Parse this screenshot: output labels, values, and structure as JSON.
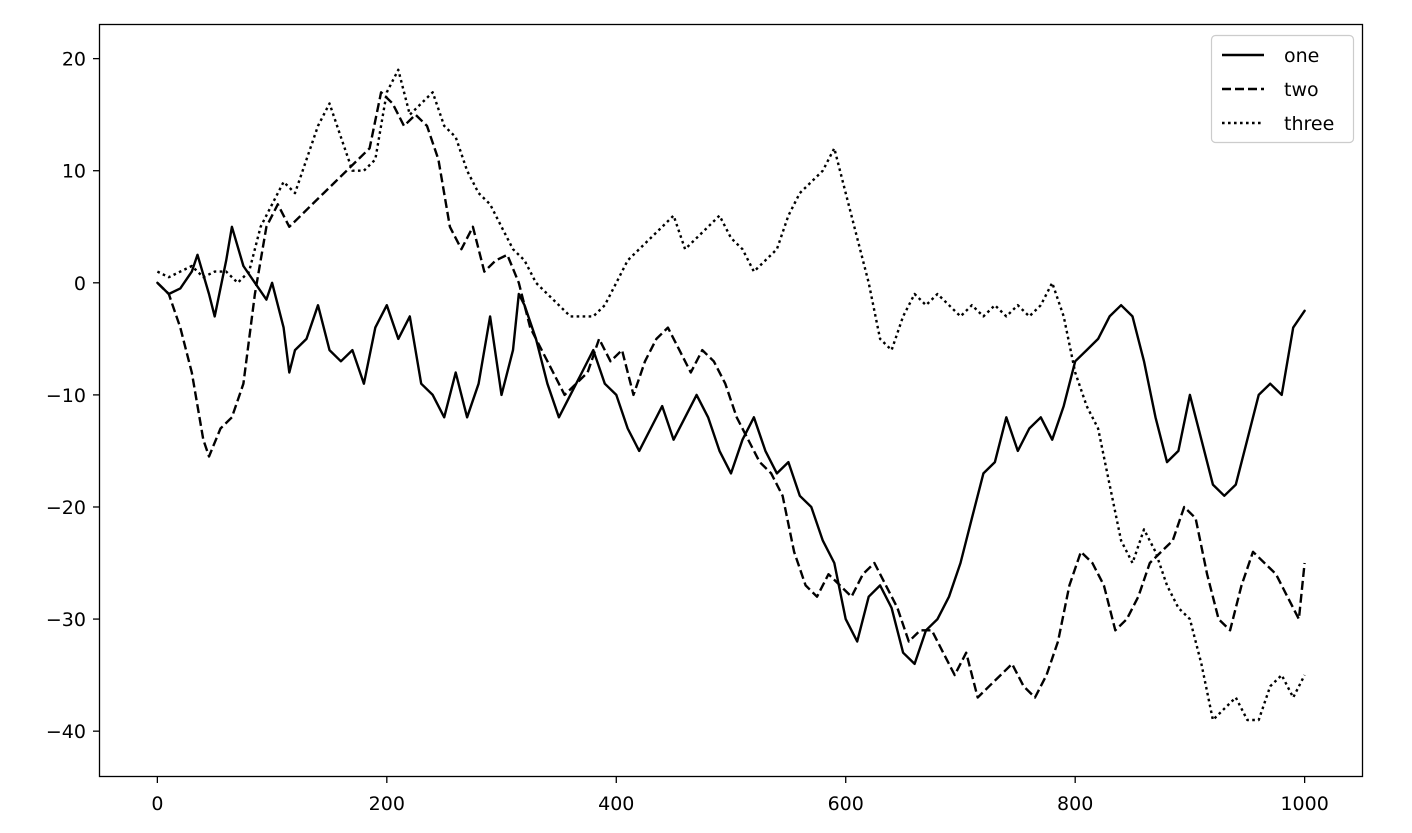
{
  "chart_data": {
    "type": "line",
    "title": "",
    "xlabel": "",
    "ylabel": "",
    "xlim": [
      -50,
      1050
    ],
    "ylim": [
      -44,
      23
    ],
    "x_ticks": [
      0,
      200,
      400,
      600,
      800,
      1000
    ],
    "x_tick_labels": [
      "0",
      "200",
      "400",
      "600",
      "800",
      "1000"
    ],
    "y_ticks": [
      20,
      10,
      0,
      -10,
      -20,
      -30,
      -40
    ],
    "y_tick_labels": [
      "20",
      "10",
      "0",
      "−10",
      "−20",
      "−30",
      "−40"
    ],
    "grid": false,
    "legend": {
      "placement": "upper right"
    },
    "series": [
      {
        "name": "one",
        "style": "solid",
        "color": "#000000",
        "points": [
          [
            0,
            0
          ],
          [
            10,
            -1
          ],
          [
            20,
            -0.5
          ],
          [
            30,
            1
          ],
          [
            35,
            2.5
          ],
          [
            45,
            -1
          ],
          [
            50,
            -3
          ],
          [
            60,
            2
          ],
          [
            65,
            5
          ],
          [
            75,
            1.5
          ],
          [
            85,
            0
          ],
          [
            95,
            -1.5
          ],
          [
            100,
            0
          ],
          [
            110,
            -4
          ],
          [
            115,
            -8
          ],
          [
            120,
            -6
          ],
          [
            130,
            -5
          ],
          [
            140,
            -2
          ],
          [
            150,
            -6
          ],
          [
            160,
            -7
          ],
          [
            170,
            -6
          ],
          [
            180,
            -9
          ],
          [
            190,
            -4
          ],
          [
            200,
            -2
          ],
          [
            210,
            -5
          ],
          [
            220,
            -3
          ],
          [
            230,
            -9
          ],
          [
            240,
            -10
          ],
          [
            250,
            -12
          ],
          [
            260,
            -8
          ],
          [
            270,
            -12
          ],
          [
            280,
            -9
          ],
          [
            290,
            -3
          ],
          [
            300,
            -10
          ],
          [
            310,
            -6
          ],
          [
            315,
            -1
          ],
          [
            320,
            -2
          ],
          [
            330,
            -5
          ],
          [
            340,
            -9
          ],
          [
            350,
            -12
          ],
          [
            360,
            -10
          ],
          [
            370,
            -8
          ],
          [
            380,
            -6
          ],
          [
            390,
            -9
          ],
          [
            400,
            -10
          ],
          [
            410,
            -13
          ],
          [
            420,
            -15
          ],
          [
            430,
            -13
          ],
          [
            440,
            -11
          ],
          [
            450,
            -14
          ],
          [
            460,
            -12
          ],
          [
            470,
            -10
          ],
          [
            480,
            -12
          ],
          [
            490,
            -15
          ],
          [
            500,
            -17
          ],
          [
            510,
            -14
          ],
          [
            520,
            -12
          ],
          [
            530,
            -15
          ],
          [
            540,
            -17
          ],
          [
            550,
            -16
          ],
          [
            560,
            -19
          ],
          [
            570,
            -20
          ],
          [
            580,
            -23
          ],
          [
            590,
            -25
          ],
          [
            600,
            -30
          ],
          [
            610,
            -32
          ],
          [
            620,
            -28
          ],
          [
            630,
            -27
          ],
          [
            640,
            -29
          ],
          [
            650,
            -33
          ],
          [
            660,
            -34
          ],
          [
            670,
            -31
          ],
          [
            680,
            -30
          ],
          [
            690,
            -28
          ],
          [
            700,
            -25
          ],
          [
            710,
            -21
          ],
          [
            720,
            -17
          ],
          [
            730,
            -16
          ],
          [
            740,
            -12
          ],
          [
            750,
            -15
          ],
          [
            760,
            -13
          ],
          [
            770,
            -12
          ],
          [
            780,
            -14
          ],
          [
            790,
            -11
          ],
          [
            800,
            -7
          ],
          [
            810,
            -6
          ],
          [
            820,
            -5
          ],
          [
            830,
            -3
          ],
          [
            840,
            -2
          ],
          [
            850,
            -3
          ],
          [
            860,
            -7
          ],
          [
            870,
            -12
          ],
          [
            880,
            -16
          ],
          [
            890,
            -15
          ],
          [
            900,
            -10
          ],
          [
            910,
            -14
          ],
          [
            920,
            -18
          ],
          [
            930,
            -19
          ],
          [
            940,
            -18
          ],
          [
            950,
            -14
          ],
          [
            960,
            -10
          ],
          [
            970,
            -9
          ],
          [
            980,
            -10
          ],
          [
            990,
            -4
          ],
          [
            1000,
            -2.5
          ]
        ]
      },
      {
        "name": "two",
        "style": "dashed",
        "color": "#000000",
        "points": [
          [
            0,
            0
          ],
          [
            10,
            -1
          ],
          [
            20,
            -4
          ],
          [
            30,
            -8
          ],
          [
            40,
            -14
          ],
          [
            45,
            -15.5
          ],
          [
            55,
            -13
          ],
          [
            65,
            -12
          ],
          [
            75,
            -9
          ],
          [
            85,
            -1
          ],
          [
            95,
            5
          ],
          [
            105,
            7
          ],
          [
            115,
            5
          ],
          [
            125,
            6
          ],
          [
            135,
            7
          ],
          [
            145,
            8
          ],
          [
            155,
            9
          ],
          [
            165,
            10
          ],
          [
            175,
            11
          ],
          [
            185,
            12
          ],
          [
            195,
            17
          ],
          [
            205,
            16
          ],
          [
            215,
            14
          ],
          [
            225,
            15
          ],
          [
            235,
            14
          ],
          [
            245,
            11
          ],
          [
            255,
            5
          ],
          [
            265,
            3
          ],
          [
            275,
            5
          ],
          [
            285,
            1
          ],
          [
            295,
            2
          ],
          [
            305,
            2.5
          ],
          [
            315,
            0
          ],
          [
            325,
            -4
          ],
          [
            335,
            -6
          ],
          [
            345,
            -8
          ],
          [
            355,
            -10
          ],
          [
            365,
            -9
          ],
          [
            375,
            -8
          ],
          [
            385,
            -5
          ],
          [
            395,
            -7
          ],
          [
            405,
            -6
          ],
          [
            415,
            -10
          ],
          [
            425,
            -7
          ],
          [
            435,
            -5
          ],
          [
            445,
            -4
          ],
          [
            455,
            -6
          ],
          [
            465,
            -8
          ],
          [
            475,
            -6
          ],
          [
            485,
            -7
          ],
          [
            495,
            -9
          ],
          [
            505,
            -12
          ],
          [
            515,
            -14
          ],
          [
            525,
            -16
          ],
          [
            535,
            -17
          ],
          [
            545,
            -19
          ],
          [
            555,
            -24
          ],
          [
            565,
            -27
          ],
          [
            575,
            -28
          ],
          [
            585,
            -26
          ],
          [
            595,
            -27
          ],
          [
            605,
            -28
          ],
          [
            615,
            -26
          ],
          [
            625,
            -25
          ],
          [
            635,
            -27
          ],
          [
            645,
            -29
          ],
          [
            655,
            -32
          ],
          [
            665,
            -31
          ],
          [
            675,
            -31
          ],
          [
            685,
            -33
          ],
          [
            695,
            -35
          ],
          [
            705,
            -33
          ],
          [
            715,
            -37
          ],
          [
            725,
            -36
          ],
          [
            735,
            -35
          ],
          [
            745,
            -34
          ],
          [
            755,
            -36
          ],
          [
            765,
            -37
          ],
          [
            775,
            -35
          ],
          [
            785,
            -32
          ],
          [
            795,
            -27
          ],
          [
            805,
            -24
          ],
          [
            815,
            -25
          ],
          [
            825,
            -27
          ],
          [
            835,
            -31
          ],
          [
            845,
            -30
          ],
          [
            855,
            -28
          ],
          [
            865,
            -25
          ],
          [
            875,
            -24
          ],
          [
            885,
            -23
          ],
          [
            895,
            -20
          ],
          [
            905,
            -21
          ],
          [
            915,
            -26
          ],
          [
            925,
            -30
          ],
          [
            935,
            -31
          ],
          [
            945,
            -27
          ],
          [
            955,
            -24
          ],
          [
            965,
            -25
          ],
          [
            975,
            -26
          ],
          [
            985,
            -28
          ],
          [
            995,
            -30
          ],
          [
            1000,
            -25
          ]
        ]
      },
      {
        "name": "three",
        "style": "dotted",
        "color": "#000000",
        "points": [
          [
            0,
            1
          ],
          [
            10,
            0.5
          ],
          [
            20,
            1
          ],
          [
            30,
            1.5
          ],
          [
            40,
            0.5
          ],
          [
            50,
            1
          ],
          [
            60,
            1
          ],
          [
            70,
            0
          ],
          [
            80,
            1
          ],
          [
            90,
            5
          ],
          [
            100,
            7
          ],
          [
            110,
            9
          ],
          [
            120,
            8
          ],
          [
            130,
            11
          ],
          [
            140,
            14
          ],
          [
            150,
            16
          ],
          [
            160,
            13
          ],
          [
            170,
            10
          ],
          [
            180,
            10
          ],
          [
            190,
            11
          ],
          [
            200,
            17
          ],
          [
            210,
            19
          ],
          [
            220,
            15
          ],
          [
            230,
            16
          ],
          [
            240,
            17
          ],
          [
            250,
            14
          ],
          [
            260,
            13
          ],
          [
            270,
            10
          ],
          [
            280,
            8
          ],
          [
            290,
            7
          ],
          [
            300,
            5
          ],
          [
            310,
            3
          ],
          [
            320,
            2
          ],
          [
            330,
            0
          ],
          [
            340,
            -1
          ],
          [
            350,
            -2
          ],
          [
            360,
            -3
          ],
          [
            370,
            -3
          ],
          [
            380,
            -3
          ],
          [
            390,
            -2
          ],
          [
            400,
            0
          ],
          [
            410,
            2
          ],
          [
            420,
            3
          ],
          [
            430,
            4
          ],
          [
            440,
            5
          ],
          [
            450,
            6
          ],
          [
            460,
            3
          ],
          [
            470,
            4
          ],
          [
            480,
            5
          ],
          [
            490,
            6
          ],
          [
            500,
            4
          ],
          [
            510,
            3
          ],
          [
            520,
            1
          ],
          [
            530,
            2
          ],
          [
            540,
            3
          ],
          [
            550,
            6
          ],
          [
            560,
            8
          ],
          [
            570,
            9
          ],
          [
            580,
            10
          ],
          [
            590,
            12
          ],
          [
            600,
            8
          ],
          [
            610,
            4
          ],
          [
            620,
            0
          ],
          [
            630,
            -5
          ],
          [
            640,
            -6
          ],
          [
            650,
            -3
          ],
          [
            660,
            -1
          ],
          [
            670,
            -2
          ],
          [
            680,
            -1
          ],
          [
            690,
            -2
          ],
          [
            700,
            -3
          ],
          [
            710,
            -2
          ],
          [
            720,
            -3
          ],
          [
            730,
            -2
          ],
          [
            740,
            -3
          ],
          [
            750,
            -2
          ],
          [
            760,
            -3
          ],
          [
            770,
            -2
          ],
          [
            780,
            0
          ],
          [
            790,
            -3
          ],
          [
            800,
            -8
          ],
          [
            810,
            -11
          ],
          [
            820,
            -13
          ],
          [
            830,
            -18
          ],
          [
            840,
            -23
          ],
          [
            850,
            -25
          ],
          [
            860,
            -22
          ],
          [
            870,
            -24
          ],
          [
            880,
            -27
          ],
          [
            890,
            -29
          ],
          [
            900,
            -30
          ],
          [
            910,
            -34
          ],
          [
            920,
            -39
          ],
          [
            930,
            -38
          ],
          [
            940,
            -37
          ],
          [
            950,
            -39
          ],
          [
            960,
            -39
          ],
          [
            970,
            -36
          ],
          [
            980,
            -35
          ],
          [
            990,
            -37
          ],
          [
            1000,
            -35
          ]
        ]
      }
    ]
  }
}
